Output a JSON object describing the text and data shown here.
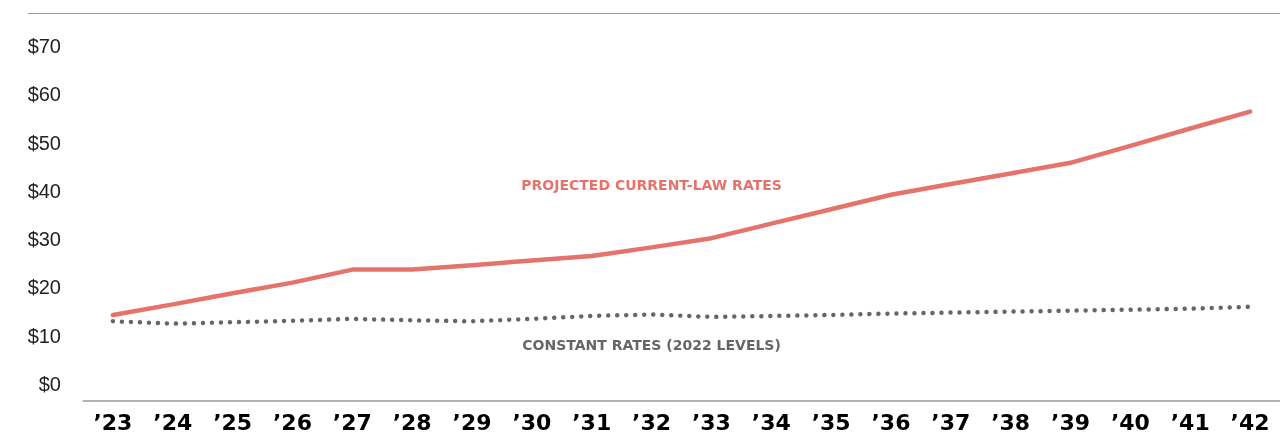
{
  "chart_data": {
    "type": "line",
    "categories": [
      "’23",
      "’24",
      "’25",
      "’26",
      "’27",
      "’28",
      "’29",
      "’30",
      "’31",
      "’32",
      "’33",
      "’34",
      "’35",
      "’36",
      "’37",
      "’38",
      "’39",
      "’40",
      "’41",
      "’42"
    ],
    "series": [
      {
        "name": "PROJECTED CURRENT-LAW RATES",
        "color": "#e5736b",
        "line_style": "solid",
        "values": [
          14.3,
          16.5,
          18.8,
          21,
          23.7,
          23.7,
          24.6,
          25.6,
          26.5,
          28.3,
          30.2,
          33.2,
          36.2,
          39.2,
          41.4,
          43.6,
          45.8,
          49.3,
          52.9,
          56.4
        ]
      },
      {
        "name": "CONSTANT RATES (2022 LEVELS)",
        "color": "#666666",
        "line_style": "dotted",
        "values": [
          13.0,
          12.5,
          12.8,
          13.1,
          13.5,
          13.2,
          13.0,
          13.5,
          14.1,
          14.4,
          13.9,
          14.1,
          14.3,
          14.6,
          14.8,
          15.0,
          15.2,
          15.4,
          15.6,
          16.0
        ]
      }
    ],
    "ylim": [
      -3.5,
      76.6
    ],
    "yticks": [
      {
        "value": 0,
        "label": "$0"
      },
      {
        "value": 10,
        "label": "$10"
      },
      {
        "value": 20,
        "label": "$20"
      },
      {
        "value": 30,
        "label": "$30"
      },
      {
        "value": 40,
        "label": "$40"
      },
      {
        "value": 50,
        "label": "$50"
      },
      {
        "value": 60,
        "label": "$60"
      },
      {
        "value": 70,
        "label": "$70"
      }
    ],
    "grid": false,
    "legend": false,
    "marker": "none"
  }
}
